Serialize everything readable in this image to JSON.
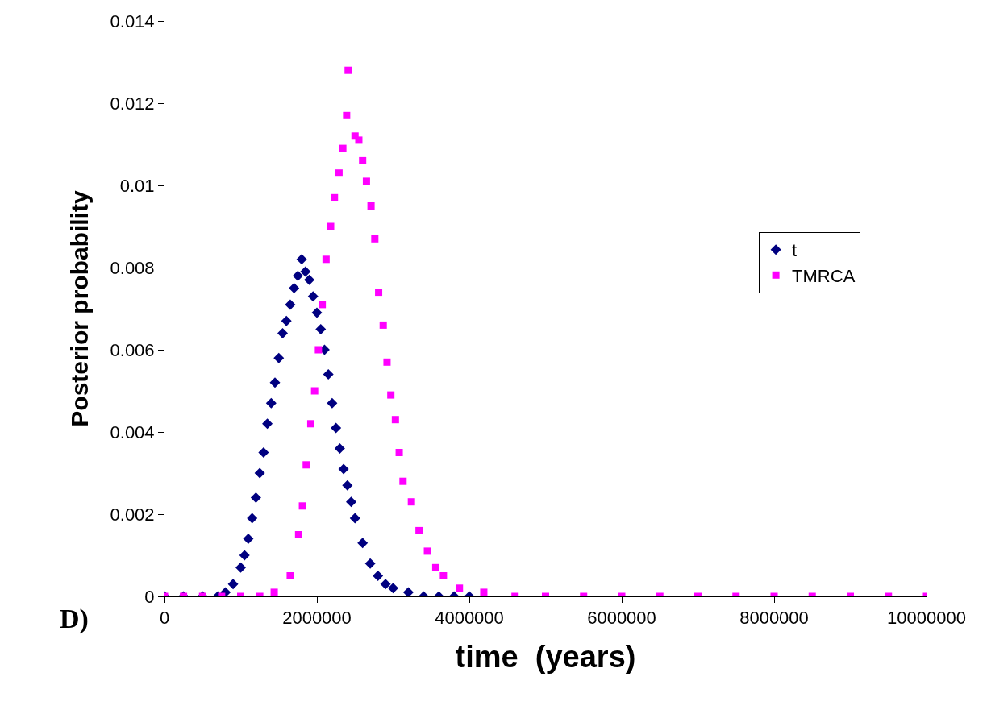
{
  "chart_data": {
    "type": "scatter",
    "xlabel": "time  (years)",
    "ylabel": "Posterior probability",
    "annotations": [
      "D)"
    ],
    "xlim": [
      0,
      10000000
    ],
    "xticks": [
      0,
      2000000,
      4000000,
      6000000,
      8000000,
      10000000
    ],
    "ylim": [
      0,
      0.014
    ],
    "yticks": [
      0,
      0.002,
      0.004,
      0.006,
      0.008,
      0.01,
      0.012,
      0.014
    ],
    "grid": false,
    "legend": "right",
    "series": [
      {
        "name": "t",
        "color": "#000080",
        "marker": "diamond",
        "x": [
          0,
          250000,
          500000,
          700000,
          800000,
          900000,
          1000000,
          1050000,
          1100000,
          1150000,
          1200000,
          1250000,
          1300000,
          1350000,
          1400000,
          1450000,
          1500000,
          1550000,
          1600000,
          1650000,
          1700000,
          1750000,
          1800000,
          1850000,
          1900000,
          1950000,
          2000000,
          2050000,
          2100000,
          2150000,
          2200000,
          2250000,
          2300000,
          2350000,
          2400000,
          2450000,
          2500000,
          2600000,
          2700000,
          2800000,
          2900000,
          3000000,
          3200000,
          3400000,
          3600000,
          3800000,
          4000000
        ],
        "values": [
          0,
          0,
          0,
          0,
          0.0001,
          0.0003,
          0.0007,
          0.001,
          0.0014,
          0.0019,
          0.0024,
          0.003,
          0.0035,
          0.0042,
          0.0047,
          0.0052,
          0.0058,
          0.0064,
          0.0067,
          0.0071,
          0.0075,
          0.0078,
          0.0082,
          0.0079,
          0.0077,
          0.0073,
          0.0069,
          0.0065,
          0.006,
          0.0054,
          0.0047,
          0.0041,
          0.0036,
          0.0031,
          0.0027,
          0.0023,
          0.0019,
          0.0013,
          0.0008,
          0.0005,
          0.0003,
          0.0002,
          0.0001,
          0,
          0,
          0,
          0
        ]
      },
      {
        "name": "TMRCA",
        "color": "#ff00ff",
        "marker": "square",
        "x": [
          0,
          250000,
          500000,
          750000,
          1000000,
          1250000,
          1440000,
          1650000,
          1760000,
          1810000,
          1860000,
          1920000,
          1970000,
          2020000,
          2070000,
          2120000,
          2180000,
          2230000,
          2290000,
          2340000,
          2390000,
          2410000,
          2500000,
          2550000,
          2600000,
          2650000,
          2710000,
          2760000,
          2810000,
          2870000,
          2920000,
          2970000,
          3030000,
          3080000,
          3130000,
          3240000,
          3340000,
          3450000,
          3560000,
          3660000,
          3870000,
          4190000,
          4600000,
          5000000,
          5500000,
          6000000,
          6500000,
          7000000,
          7500000,
          8000000,
          8500000,
          9000000,
          9500000,
          10000000
        ],
        "values": [
          0,
          0,
          0,
          0,
          0,
          0,
          0.0001,
          0.0005,
          0.0015,
          0.0022,
          0.0032,
          0.0042,
          0.005,
          0.006,
          0.0071,
          0.0082,
          0.009,
          0.0097,
          0.0103,
          0.0109,
          0.0117,
          0.0128,
          0.0112,
          0.0111,
          0.0106,
          0.0101,
          0.0095,
          0.0087,
          0.0074,
          0.0066,
          0.0057,
          0.0049,
          0.0043,
          0.0035,
          0.0028,
          0.0023,
          0.0016,
          0.0011,
          0.0007,
          0.0005,
          0.0002,
          0.0001,
          0,
          0,
          0,
          0,
          0,
          0,
          0,
          0,
          0,
          0,
          0,
          0
        ]
      }
    ]
  }
}
